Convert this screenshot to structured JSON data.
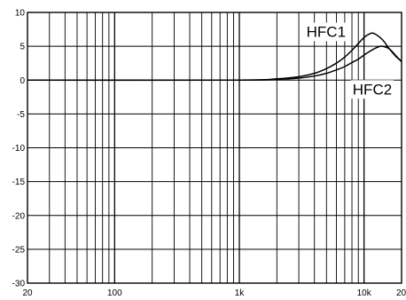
{
  "chart_data": {
    "type": "line",
    "xscale": "log",
    "xlim": [
      20,
      20000
    ],
    "ylim": [
      -30,
      10
    ],
    "grid": true,
    "yticks": [
      10,
      5,
      0,
      -5,
      -10,
      -15,
      -20,
      -25,
      -30
    ],
    "ytick_labels": [
      "10",
      "5",
      "0",
      "-5",
      "-10",
      "-15",
      "-20",
      "-25",
      "-30"
    ],
    "xticks": [
      20,
      100,
      1000,
      10000,
      20000
    ],
    "xtick_labels": [
      "20",
      "100",
      "1k",
      "10k",
      "20k"
    ],
    "series": [
      {
        "name": "HFC1",
        "x": [
          20,
          1000,
          2000,
          3000,
          4000,
          5000,
          6000,
          7000,
          8000,
          9000,
          10000,
          11000,
          12000,
          14000,
          16000,
          18000,
          20000
        ],
        "y": [
          0,
          0,
          0.2,
          0.5,
          1.0,
          1.7,
          2.5,
          3.4,
          4.4,
          5.4,
          6.3,
          6.8,
          6.9,
          6.0,
          4.6,
          3.5,
          2.8
        ]
      },
      {
        "name": "HFC2",
        "x": [
          20,
          1000,
          2000,
          3000,
          4000,
          5000,
          6000,
          7000,
          8000,
          9000,
          10000,
          11000,
          12000,
          13000,
          14000,
          16000,
          18000,
          20000
        ],
        "y": [
          0,
          0,
          0.1,
          0.3,
          0.6,
          1.0,
          1.5,
          2.0,
          2.6,
          3.1,
          3.7,
          4.2,
          4.6,
          4.9,
          5.0,
          4.6,
          3.6,
          2.7
        ]
      }
    ]
  }
}
